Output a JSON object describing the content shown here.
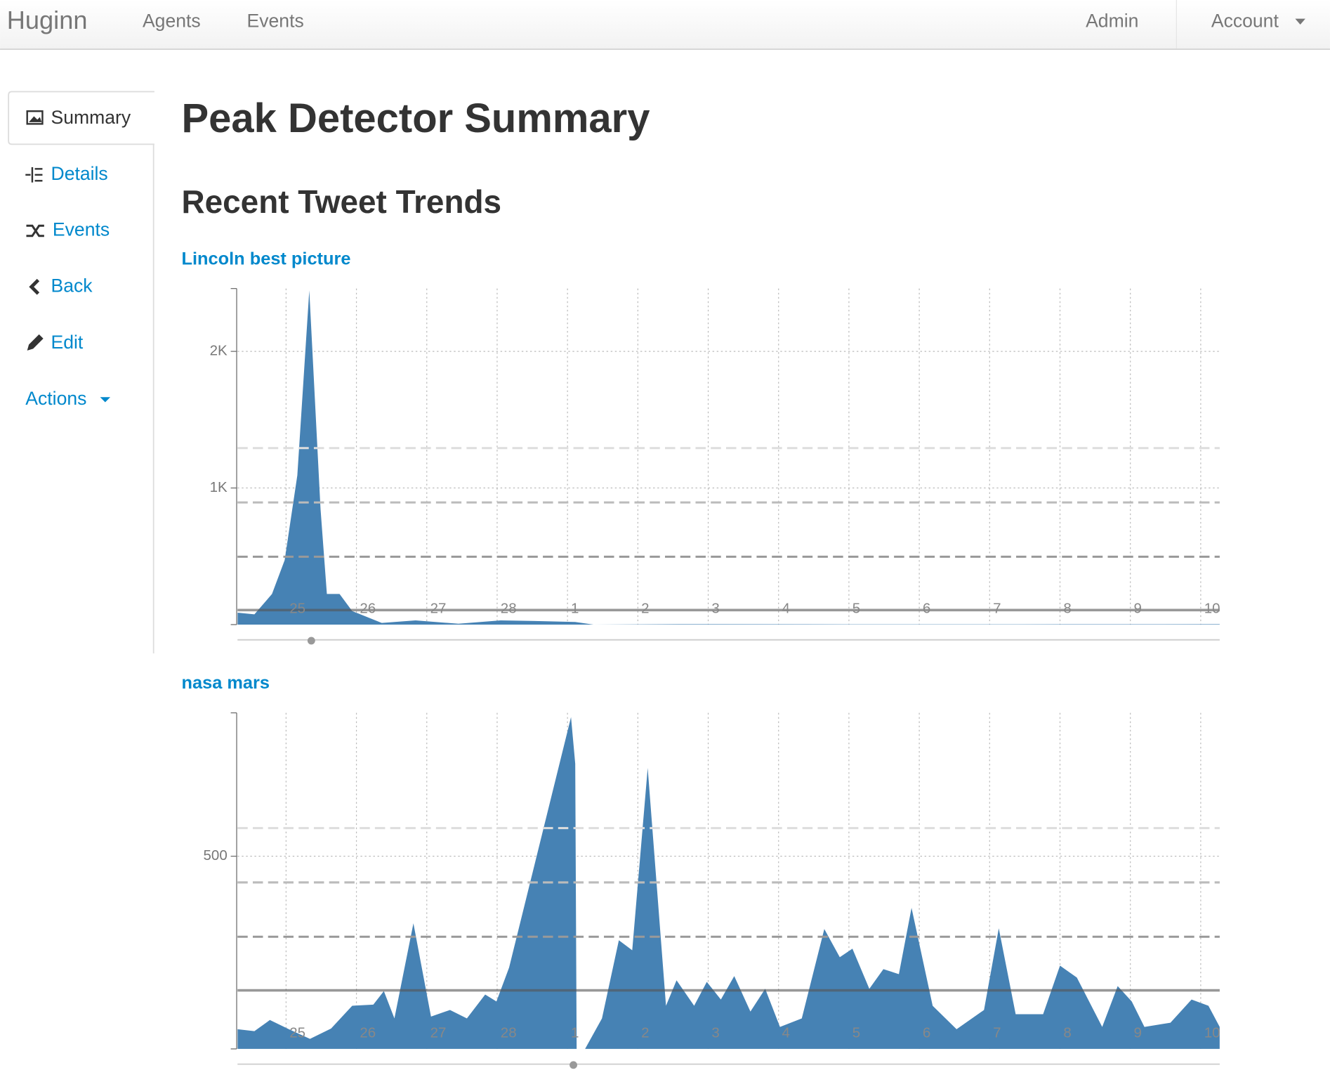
{
  "navbar": {
    "brand": "Huginn",
    "links": [
      "Agents",
      "Events"
    ],
    "right": [
      "Admin",
      "Account"
    ]
  },
  "sidebar": {
    "items": [
      "Summary",
      "Details",
      "Events",
      "Back",
      "Edit",
      "Actions"
    ]
  },
  "page": {
    "title": "Peak Detector Summary",
    "subtitle": "Recent Tweet Trends"
  },
  "chart_data": [
    {
      "type": "area",
      "title": "Lincoln best picture",
      "color": "#4682b4",
      "x": [
        24.31,
        24.55,
        24.8,
        24.98,
        25.16,
        25.33,
        25.49,
        25.58,
        25.76,
        25.94,
        26.36,
        26.84,
        27.45,
        28.05,
        28.65,
        29.11,
        29.37,
        30.58,
        32.99,
        35.4,
        38.27
      ],
      "values": [
        87,
        75,
        224,
        472,
        1093,
        2447,
        845,
        224,
        224,
        99,
        12,
        31,
        6,
        31,
        25,
        19,
        0,
        3,
        2,
        2,
        3
      ],
      "xlim": [
        24.31,
        38.27
      ],
      "xticks": [
        25,
        26,
        27,
        28,
        {
          "value": 29,
          "label": "1"
        },
        {
          "value": 30,
          "label": "2"
        },
        {
          "value": 31,
          "label": "3"
        },
        {
          "value": 32,
          "label": "4"
        },
        {
          "value": 33,
          "label": "5"
        },
        {
          "value": 34,
          "label": "6"
        },
        {
          "value": 35,
          "label": "7"
        },
        {
          "value": 36,
          "label": "8"
        },
        {
          "value": 37,
          "label": "9"
        },
        {
          "value": 38,
          "label": "10"
        }
      ],
      "ylim": [
        0,
        2460
      ],
      "yticks": [
        {
          "value": 1000,
          "label": "1K"
        },
        {
          "value": 2000,
          "label": "2K"
        }
      ],
      "thresholds": [
        106,
        497,
        894,
        1292
      ],
      "grid": true
    },
    {
      "type": "area",
      "title": "nasa mars",
      "color": "#4682b4",
      "x": [
        24.31,
        24.55,
        24.77,
        25.04,
        25.34,
        25.64,
        25.94,
        26.24,
        26.39,
        26.54,
        26.81,
        27.06,
        27.33,
        27.57,
        27.83,
        27.99,
        28.17,
        29.05,
        29.11,
        29.13,
        29.25,
        29.49,
        29.73,
        29.92,
        30.14,
        30.4,
        30.55,
        30.8,
        30.98,
        31.18,
        31.37,
        31.6,
        31.81,
        32.02,
        32.33,
        32.65,
        32.87,
        33.05,
        33.29,
        33.49,
        33.71,
        33.89,
        34.19,
        34.53,
        34.92,
        35.13,
        35.37,
        35.76,
        36.0,
        36.24,
        36.6,
        36.82,
        37.02,
        37.2,
        37.57,
        37.87,
        38.11,
        38.27
      ],
      "values": [
        51,
        46,
        75,
        51,
        26,
        53,
        112,
        115,
        150,
        79,
        326,
        84,
        101,
        79,
        141,
        123,
        211,
        861,
        740,
        0,
        0,
        79,
        282,
        256,
        729,
        112,
        178,
        112,
        174,
        128,
        189,
        97,
        156,
        57,
        79,
        311,
        238,
        260,
        156,
        207,
        194,
        366,
        112,
        51,
        101,
        313,
        90,
        90,
        216,
        185,
        57,
        163,
        123,
        57,
        68,
        128,
        112,
        57
      ],
      "xlim": [
        24.31,
        38.27
      ],
      "xticks": [
        25,
        26,
        27,
        28,
        {
          "value": 29,
          "label": "1"
        },
        {
          "value": 30,
          "label": "2"
        },
        {
          "value": 31,
          "label": "3"
        },
        {
          "value": 32,
          "label": "4"
        },
        {
          "value": 33,
          "label": "5"
        },
        {
          "value": 34,
          "label": "6"
        },
        {
          "value": 35,
          "label": "7"
        },
        {
          "value": 36,
          "label": "8"
        },
        {
          "value": 37,
          "label": "9"
        },
        {
          "value": 38,
          "label": "10"
        }
      ],
      "ylim": [
        0,
        872
      ],
      "yticks": [
        500
      ],
      "thresholds": [
        152,
        291,
        432,
        573
      ],
      "grid": true
    }
  ]
}
